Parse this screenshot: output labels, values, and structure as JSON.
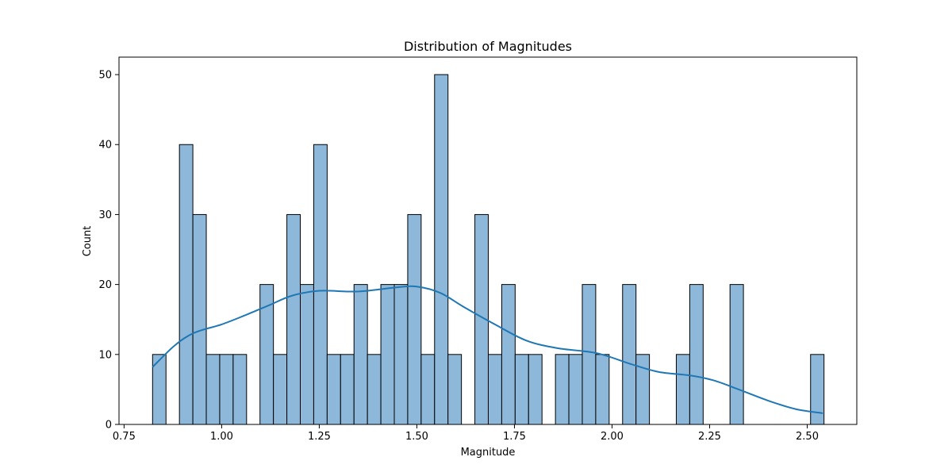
{
  "chart_data": {
    "type": "bar",
    "title": "Distribution of Magnitudes",
    "xlabel": "Magnitude",
    "ylabel": "Count",
    "xlim": [
      0.737,
      2.627
    ],
    "ylim": [
      0,
      52.5
    ],
    "x_ticks": [
      0.75,
      1.0,
      1.25,
      1.5,
      1.75,
      2.0,
      2.25,
      2.5
    ],
    "x_tick_labels": [
      "0.75",
      "1.00",
      "1.25",
      "1.50",
      "1.75",
      "2.00",
      "2.25",
      "2.50"
    ],
    "y_ticks": [
      0,
      10,
      20,
      30,
      40,
      50
    ],
    "y_tick_labels": [
      "0",
      "10",
      "20",
      "30",
      "40",
      "50"
    ],
    "bin_start": 0.823,
    "bin_width": 0.0344,
    "counts": [
      10,
      0,
      40,
      30,
      10,
      10,
      10,
      0,
      20,
      10,
      30,
      20,
      40,
      10,
      10,
      20,
      10,
      20,
      20,
      30,
      10,
      50,
      10,
      0,
      30,
      10,
      20,
      10,
      10,
      0,
      10,
      10,
      20,
      10,
      0,
      20,
      10,
      0,
      0,
      10,
      20,
      0,
      0,
      20,
      0,
      0,
      0,
      0,
      0,
      10
    ],
    "bar_color": "#8db8da",
    "edge_color": "#000000",
    "kde": {
      "color": "#1f77b4",
      "x": [
        0.823,
        0.88,
        0.93,
        1.0,
        1.06,
        1.12,
        1.18,
        1.25,
        1.35,
        1.45,
        1.5,
        1.56,
        1.62,
        1.7,
        1.78,
        1.86,
        1.96,
        2.05,
        2.12,
        2.2,
        2.26,
        2.32,
        2.4,
        2.47,
        2.54
      ],
      "y": [
        8.2,
        11.3,
        13.1,
        14.3,
        15.6,
        17.0,
        18.4,
        19.1,
        19.0,
        19.6,
        19.7,
        18.8,
        16.8,
        14.3,
        12.0,
        10.9,
        10.2,
        8.6,
        7.5,
        7.0,
        6.3,
        5.1,
        3.4,
        2.2,
        1.6
      ]
    },
    "grid": false,
    "legend": "none"
  }
}
